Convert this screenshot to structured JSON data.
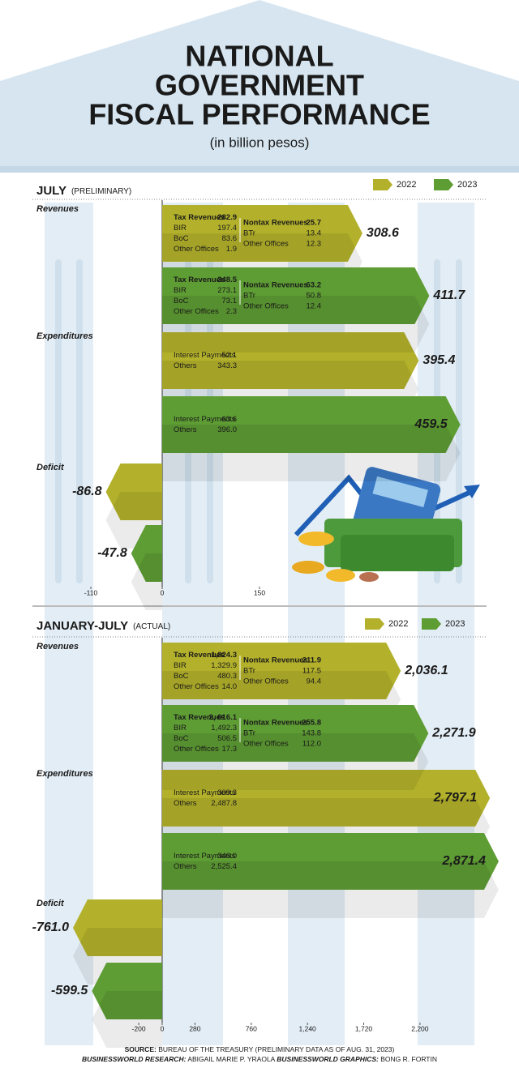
{
  "title": [
    "NATIONAL",
    "GOVERNMENT",
    "FISCAL PERFORMANCE"
  ],
  "subtitle": "(in billion pesos)",
  "chart_data": [
    {
      "type": "bar",
      "orientation": "horizontal",
      "title": "JULY",
      "subtitle": "(PRELIMINARY)",
      "categories": [
        "Revenues",
        "Expenditures",
        "Deficit"
      ],
      "breakdown_labels": [
        [
          [
            "Tax Revenues",
            "BIR",
            "BoC",
            "Other Offices"
          ],
          [
            "Nontax Revenues",
            "BTr",
            "Other Offices"
          ]
        ],
        [
          [
            "Interest Payments",
            "Others"
          ]
        ]
      ],
      "series": [
        {
          "name": "2022",
          "color": "#b3b12b",
          "values": [
            308.6,
            395.4,
            -86.8
          ],
          "breakdowns": [
            [
              [
                "282.9",
                "197.4",
                "83.6",
                "1.9"
              ],
              [
                "25.7",
                "13.4",
                "12.3"
              ]
            ],
            [
              [
                "52.1",
                "343.3"
              ]
            ]
          ]
        },
        {
          "name": "2023",
          "color": "#5e9c34",
          "values": [
            411.7,
            459.5,
            -47.8
          ],
          "breakdowns": [
            [
              [
                "348.5",
                "273.1",
                "73.1",
                "2.3"
              ],
              [
                "63.2",
                "50.8",
                "12.4"
              ]
            ],
            [
              [
                "63.6",
                "396.0"
              ]
            ]
          ]
        }
      ],
      "xlim": [
        -110,
        550
      ],
      "xticks": [
        -110,
        0,
        150
      ]
    },
    {
      "type": "bar",
      "orientation": "horizontal",
      "title": "JANUARY-JULY",
      "subtitle": "(ACTUAL)",
      "categories": [
        "Revenues",
        "Expenditures",
        "Deficit"
      ],
      "breakdown_labels": [
        [
          [
            "Tax Revenues",
            "BIR",
            "BoC",
            "Other Offices"
          ],
          [
            "Nontax Revenues",
            "BTr",
            "Other Offices"
          ]
        ],
        [
          [
            "Interest Payments",
            "Others"
          ]
        ]
      ],
      "series": [
        {
          "name": "2022",
          "color": "#b3b12b",
          "values": [
            2036.1,
            2797.1,
            -761.0
          ],
          "value_labels": [
            "2,036.1",
            "2,797.1",
            "-761.0"
          ],
          "breakdowns": [
            [
              [
                "1,824.3",
                "1,329.9",
                "480.3",
                "14.0"
              ],
              [
                "211.9",
                "117.5",
                "94.4"
              ]
            ],
            [
              [
                "309.3",
                "2,487.8"
              ]
            ]
          ]
        },
        {
          "name": "2023",
          "color": "#5e9c34",
          "values": [
            2271.9,
            2871.4,
            -599.5
          ],
          "value_labels": [
            "2,271.9",
            "2,871.4",
            "-599.5"
          ],
          "breakdowns": [
            [
              [
                "2, 016.1",
                "1,492.3",
                "506.5",
                "17.3"
              ],
              [
                "255.8",
                "143.8",
                "112.0"
              ]
            ],
            [
              [
                "346.0",
                "2,525.4"
              ]
            ]
          ]
        }
      ],
      "xlim": [
        -1100,
        3000
      ],
      "xticks": [
        -200,
        0,
        280,
        760,
        {
          "value": 1240,
          "label": "1,240"
        },
        {
          "value": 1720,
          "label": "1,720"
        },
        {
          "value": 2200,
          "label": "2,200"
        }
      ]
    }
  ],
  "source_label": "SOURCE:",
  "source": "BUREAU OF THE TREASURY (PRELIMINARY DATA AS OF AUG. 31, 2023)",
  "credits": [
    {
      "label": "BUSINESSWORLD RESEARCH:",
      "name": "ABIGAIL MARIE P. YRAOLA"
    },
    {
      "label": "BUSINESSWORLD GRAPHICS:",
      "name": "BONG R. FORTIN"
    }
  ]
}
